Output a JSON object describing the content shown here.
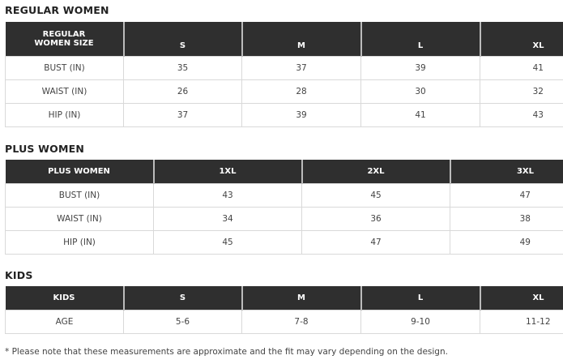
{
  "sections": [
    {
      "title": "REGULAR WOMEN",
      "headers": [
        "REGULAR WOMEN SIZE",
        "S",
        "M",
        "L",
        "XL"
      ],
      "rows": [
        [
          "BUST (IN)",
          "35",
          "37",
          "39",
          "41"
        ],
        [
          "WAIST (IN)",
          "26",
          "28",
          "30",
          "32"
        ],
        [
          "HIP (IN)",
          "37",
          "39",
          "41",
          "43"
        ]
      ]
    },
    {
      "title": "PLUS WOMEN",
      "headers": [
        "PLUS WOMEN",
        "1XL",
        "2XL",
        "3XL"
      ],
      "rows": [
        [
          "BUST (IN)",
          "43",
          "45",
          "47"
        ],
        [
          "WAIST (IN)",
          "34",
          "36",
          "38"
        ],
        [
          "HIP (IN)",
          "45",
          "47",
          "49"
        ]
      ]
    },
    {
      "title": "KIDS",
      "headers": [
        "KIDS",
        "S",
        "M",
        "L",
        "XL"
      ],
      "rows": [
        [
          "AGE",
          "5-6",
          "7-8",
          "9-10",
          "11-12"
        ]
      ]
    }
  ],
  "footnote": "* Please note that these measurements are approximate and the fit may vary depending on the design.",
  "colors": {
    "header_bg": "#2f2f2f",
    "header_text": "#ffffff",
    "border": "#d9d9d9"
  }
}
